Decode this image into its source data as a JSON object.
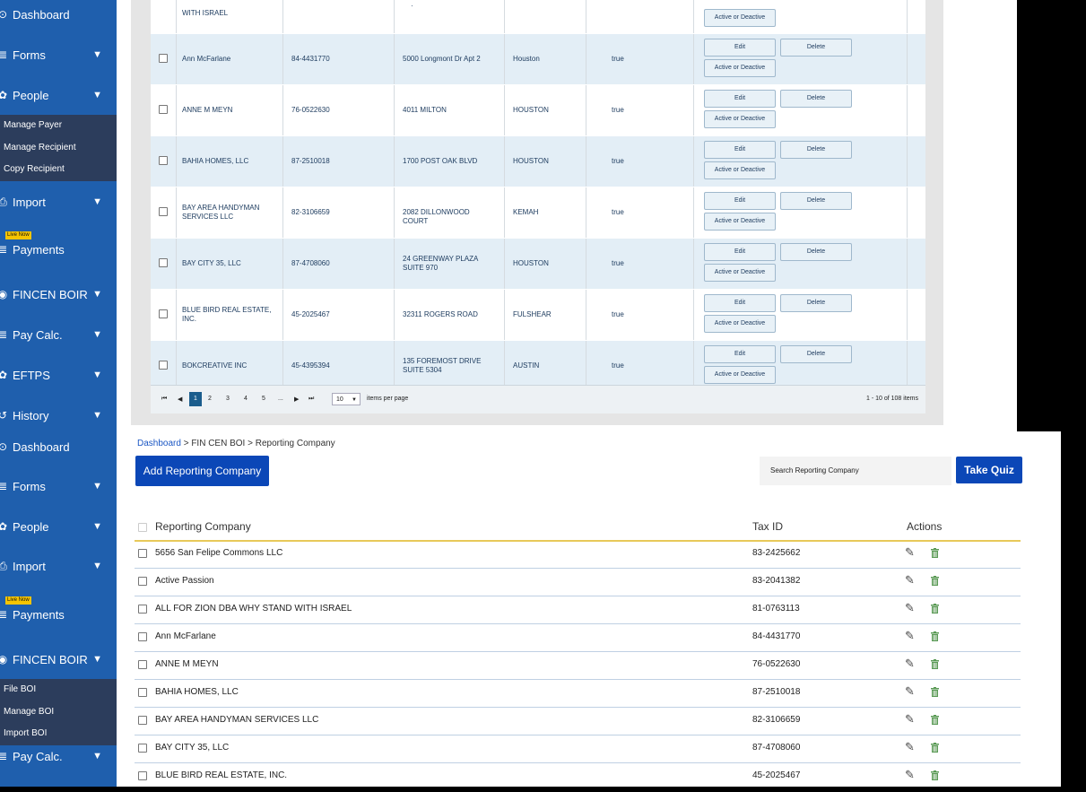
{
  "top_panel": {
    "sidebar": {
      "items": [
        {
          "label": "Dashboard",
          "icon": "dashboard-icon",
          "glyph": "⊙",
          "caret": false
        },
        {
          "label": "Forms",
          "icon": "forms-icon",
          "glyph": "≣",
          "caret": true
        },
        {
          "label": "People",
          "icon": "people-icon",
          "glyph": "✿",
          "caret": true
        },
        {
          "label": "Import",
          "icon": "import-icon",
          "glyph": "⎙",
          "caret": true
        },
        {
          "label": "Payments",
          "icon": "payments-icon",
          "glyph": "≣",
          "caret": false,
          "badge": "Live Now"
        },
        {
          "label": "FINCEN BOIR",
          "icon": "fincen-icon",
          "glyph": "◉",
          "caret": true
        },
        {
          "label": "Pay Calc.",
          "icon": "paycalc-icon",
          "glyph": "≣",
          "caret": true
        },
        {
          "label": "EFTPS",
          "icon": "eftps-icon",
          "glyph": "✿",
          "caret": true
        },
        {
          "label": "History",
          "icon": "history-icon",
          "glyph": "↺",
          "caret": true
        }
      ],
      "submenu": [
        "Manage Payer",
        "Manage Recipient",
        "Copy Recipient"
      ]
    },
    "partial_row": {
      "name": "WITH ISRAEL",
      "action": "Active or Deactive"
    },
    "rows": [
      {
        "name": "Ann McFarlane",
        "tin": "84-4431770",
        "address": "5000 Longmont Dr Apt 2",
        "city": "Houston",
        "flag": "true"
      },
      {
        "name": "ANNE M MEYN",
        "tin": "76-0522630",
        "address": "4011 MILTON",
        "city": "HOUSTON",
        "flag": "true"
      },
      {
        "name": "BAHIA HOMES, LLC",
        "tin": "87-2510018",
        "address": "1700 POST OAK BLVD",
        "city": "HOUSTON",
        "flag": "true"
      },
      {
        "name": "BAY AREA HANDYMAN SERVICES LLC",
        "tin": "82-3106659",
        "address": "2082 DILLONWOOD COURT",
        "city": "KEMAH",
        "flag": "true"
      },
      {
        "name": "BAY CITY 35, LLC",
        "tin": "87-4708060",
        "address": "24 GREENWAY PLAZA SUITE 970",
        "city": "HOUSTON",
        "flag": "true"
      },
      {
        "name": "BLUE BIRD REAL ESTATE, INC.",
        "tin": "45-2025467",
        "address": "32311 ROGERS ROAD",
        "city": "FULSHEAR",
        "flag": "true"
      },
      {
        "name": "BOKCREATIVE INC",
        "tin": "45-4395394",
        "address": "135 FOREMOST DRIVE SUITE 5304",
        "city": "AUSTIN",
        "flag": "true"
      }
    ],
    "actions": {
      "edit": "Edit",
      "delete": "Delete",
      "toggle": "Active or Deactive"
    },
    "pager": {
      "first": "⏮",
      "prev": "◀",
      "pages": [
        "1",
        "2",
        "3",
        "4",
        "5",
        "..."
      ],
      "active": "1",
      "next": "▶",
      "last": "⏭",
      "page_size": "10",
      "page_size_caret": "▼",
      "items_per_page": "items per page",
      "summary": "1 - 10 of 108 items"
    }
  },
  "bottom_panel": {
    "sidebar": {
      "items": [
        {
          "label": "Dashboard",
          "icon": "dashboard-icon",
          "glyph": "⊙",
          "caret": false
        },
        {
          "label": "Forms",
          "icon": "forms-icon",
          "glyph": "≣",
          "caret": true
        },
        {
          "label": "People",
          "icon": "people-icon",
          "glyph": "✿",
          "caret": true
        },
        {
          "label": "Import",
          "icon": "import-icon",
          "glyph": "⎙",
          "caret": true
        },
        {
          "label": "Payments",
          "icon": "payments-icon",
          "glyph": "≣",
          "caret": false,
          "badge": "Live Now"
        },
        {
          "label": "FINCEN BOIR",
          "icon": "fincen-icon",
          "glyph": "◉",
          "caret": true
        },
        {
          "label": "Pay Calc.",
          "icon": "paycalc-icon",
          "glyph": "≣",
          "caret": true
        }
      ],
      "submenu": [
        "File BOI",
        "Manage BOI",
        "Import BOI"
      ]
    },
    "breadcrumb": {
      "home": "Dashboard",
      "sep1": " > ",
      "section": "FIN CEN BOI",
      "sep2": " > ",
      "page": "Reporting Company"
    },
    "add_button": "Add Reporting Company",
    "search_placeholder": "Search Reporting Company",
    "quiz_button": "Take Quiz",
    "columns": {
      "name": "Reporting Company",
      "tax_id": "Tax ID",
      "actions": "Actions"
    },
    "rows": [
      {
        "name": "5656 San Felipe Commons LLC",
        "tax_id": "83-2425662"
      },
      {
        "name": "Active Passion",
        "tax_id": "83-2041382"
      },
      {
        "name": "ALL FOR ZION DBA WHY STAND WITH ISRAEL",
        "tax_id": "81-0763113"
      },
      {
        "name": "Ann McFarlane",
        "tax_id": "84-4431770"
      },
      {
        "name": "ANNE M MEYN",
        "tax_id": "76-0522630"
      },
      {
        "name": "BAHIA HOMES, LLC",
        "tax_id": "87-2510018"
      },
      {
        "name": "BAY AREA HANDYMAN SERVICES LLC",
        "tax_id": "82-3106659"
      },
      {
        "name": "BAY CITY 35, LLC",
        "tax_id": "87-4708060"
      },
      {
        "name": "BLUE BIRD REAL ESTATE, INC.",
        "tax_id": "45-2025467"
      }
    ],
    "edit_glyph": "✎"
  },
  "colors": {
    "sidebar": "#1f5fad",
    "submenu": "#2c3d5c",
    "primary": "#0b47b7",
    "row_alt": "#e3eef6",
    "header_underline": "#e8c95a",
    "trash": "#5a9a55"
  }
}
